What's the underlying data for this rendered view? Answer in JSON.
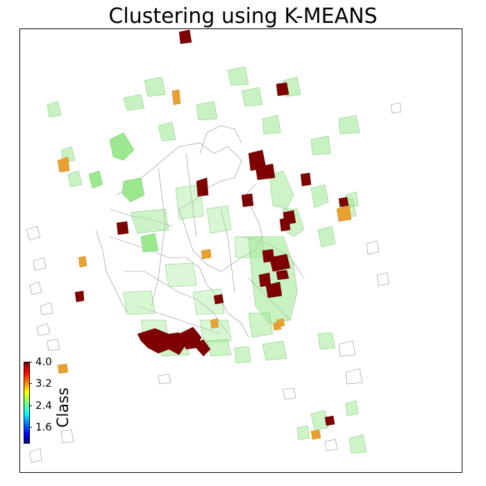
{
  "title": "Clustering using K-MEANS",
  "colorbar": {
    "label": "Class",
    "ticks": [
      "4.0",
      "3.2",
      "2.4",
      "1.6"
    ],
    "tick_values": [
      4.0,
      3.2,
      2.4,
      1.6
    ],
    "min": 1.0,
    "max": 4.0,
    "colormap": "jet"
  },
  "colors": {
    "class_low": "#9be88f",
    "class_mid": "#e8a030",
    "class_high": "#7f0000",
    "outline": "#555555"
  }
}
